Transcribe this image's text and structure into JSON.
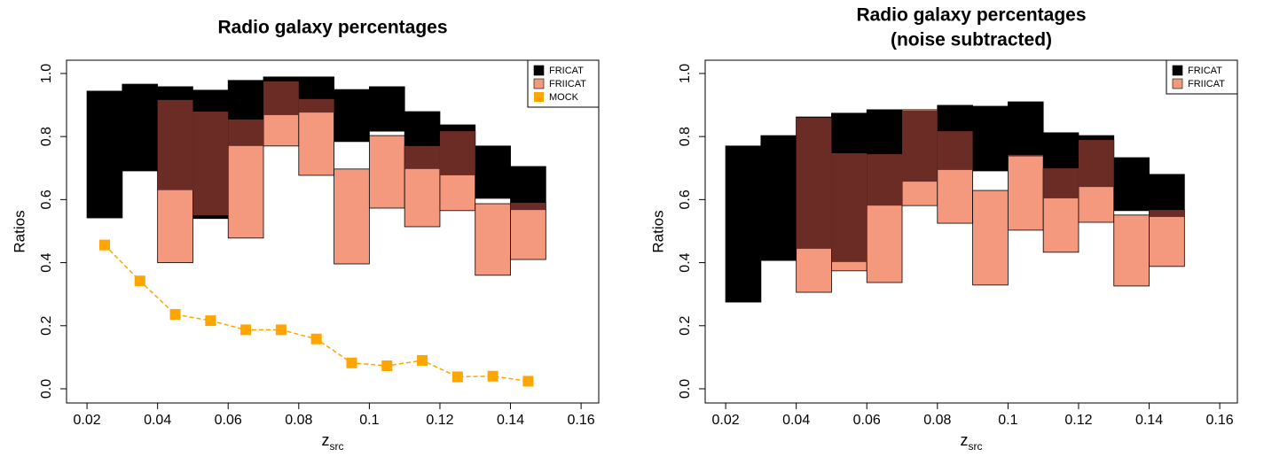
{
  "chart_data": [
    {
      "type": "step-range",
      "title": [
        "Radio galaxy percentages"
      ],
      "xlabel": "z",
      "xlabel_sub": "src",
      "ylabel": "Ratios",
      "bins": [
        0.02,
        0.03,
        0.04,
        0.05,
        0.06,
        0.07,
        0.08,
        0.09,
        0.1,
        0.11,
        0.12,
        0.13,
        0.14,
        0.15
      ],
      "series": [
        {
          "name": "FRICAT",
          "color": "#000000",
          "lower": [
            0.542,
            0.691,
            0.63,
            0.54,
            0.77,
            0.868,
            0.876,
            0.784,
            0.817,
            0.697,
            0.677,
            0.604,
            0.567
          ],
          "upper": [
            0.944,
            0.966,
            0.958,
            0.947,
            0.978,
            0.989,
            0.989,
            0.949,
            0.958,
            0.879,
            0.837,
            0.77,
            0.705
          ]
        },
        {
          "name": "FRIICAT",
          "color": "#f4997e",
          "lower": [
            null,
            null,
            0.4,
            0.55,
            0.478,
            0.77,
            0.677,
            0.396,
            0.573,
            0.514,
            0.565,
            0.36,
            0.41
          ],
          "upper": [
            null,
            null,
            0.916,
            0.879,
            0.854,
            0.975,
            0.919,
            0.697,
            0.803,
            0.77,
            0.817,
            0.587,
            0.59
          ]
        },
        {
          "name": "MOCK",
          "color": "#ffa500",
          "kind": "points",
          "x": [
            0.025,
            0.035,
            0.045,
            0.055,
            0.065,
            0.075,
            0.085,
            0.095,
            0.105,
            0.115,
            0.125,
            0.135,
            0.145
          ],
          "values": [
            0.456,
            0.342,
            0.236,
            0.216,
            0.187,
            0.187,
            0.158,
            0.082,
            0.073,
            0.09,
            0.038,
            0.04,
            0.024
          ]
        }
      ],
      "overlap_color": "#6b2c26",
      "xlim": [
        0.0142,
        0.165
      ],
      "ylim": [
        -0.045,
        1.042
      ],
      "xticks": [
        0.02,
        0.04,
        0.06,
        0.08,
        0.1,
        0.12,
        0.14,
        0.16
      ],
      "yticks": [
        {
          "value": 0,
          "label": "0.0"
        },
        0.2,
        0.4,
        0.6,
        0.8,
        {
          "value": 1,
          "label": "1.0"
        }
      ],
      "legend": "topright"
    },
    {
      "type": "step-range",
      "title": [
        "Radio galaxy percentages",
        "(noise subtracted)"
      ],
      "xlabel": "z",
      "xlabel_sub": "src",
      "ylabel": "Ratios",
      "bins": [
        0.02,
        0.03,
        0.04,
        0.05,
        0.06,
        0.07,
        0.08,
        0.09,
        0.1,
        0.11,
        0.12,
        0.13,
        0.14,
        0.15
      ],
      "series": [
        {
          "name": "FRICAT",
          "color": "#000000",
          "lower": [
            0.275,
            0.407,
            0.444,
            0.402,
            0.581,
            0.657,
            0.694,
            0.691,
            0.737,
            0.604,
            0.64,
            0.565,
            0.545
          ],
          "upper": [
            0.77,
            0.803,
            0.862,
            0.874,
            0.885,
            0.882,
            0.899,
            0.896,
            0.91,
            0.812,
            0.803,
            0.733,
            0.68
          ]
        },
        {
          "name": "FRIICAT",
          "color": "#f4997e",
          "lower": [
            null,
            null,
            0.306,
            0.374,
            0.337,
            0.581,
            0.525,
            0.329,
            0.503,
            0.433,
            0.528,
            0.326,
            0.388
          ],
          "upper": [
            null,
            null,
            0.86,
            0.747,
            0.744,
            0.885,
            0.817,
            0.629,
            0.742,
            0.699,
            0.789,
            0.551,
            0.567
          ]
        }
      ],
      "overlap_color": "#6b2c26",
      "xlim": [
        0.0142,
        0.165
      ],
      "ylim": [
        -0.045,
        1.042
      ],
      "xticks": [
        0.02,
        0.04,
        0.06,
        0.08,
        0.1,
        0.12,
        0.14,
        0.16
      ],
      "yticks": [
        {
          "value": 0,
          "label": "0.0"
        },
        0.2,
        0.4,
        0.6,
        0.8,
        {
          "value": 1,
          "label": "1.0"
        }
      ],
      "legend": "topright"
    }
  ]
}
